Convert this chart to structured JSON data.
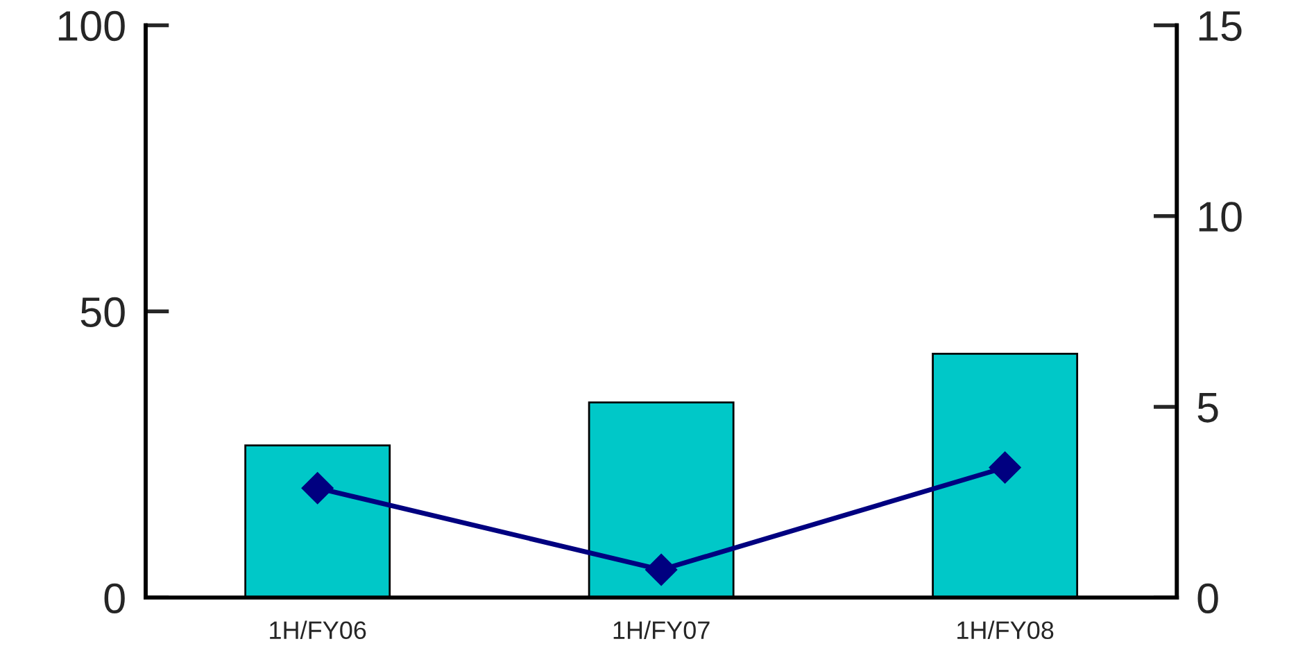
{
  "chart_data": {
    "type": "bar",
    "categories": [
      "1H/FY06",
      "1H/FY07",
      "1H/FY08"
    ],
    "series": [
      {
        "color": "#00c8c8",
        "values": [
          26.6,
          34.1,
          42.6
        ]
      },
      {
        "type": "line",
        "axis": "y2",
        "color": "#000080",
        "values": [
          2.87,
          0.73,
          3.41
        ],
        "marker": "diamond",
        "line_style": "solid"
      }
    ],
    "ylim": [
      0,
      100
    ],
    "yticks": [
      0,
      50,
      100
    ],
    "y2lim": [
      0,
      15
    ],
    "y2ticks": [
      0,
      5,
      10,
      15
    ],
    "grid": false,
    "legend": false
  }
}
